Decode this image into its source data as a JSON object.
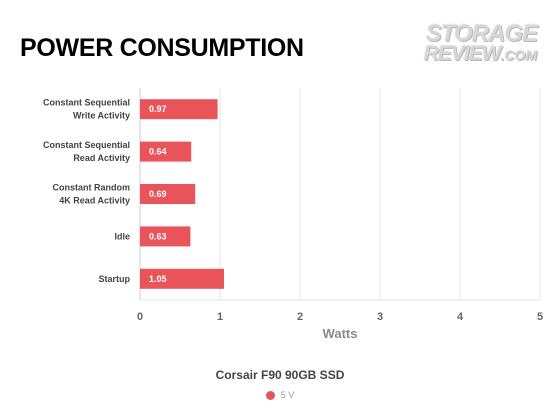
{
  "title": "POWER CONSUMPTION",
  "watermark": {
    "line1": "STORAGE",
    "line2": "REVIEW",
    "line2_suffix": ".COM"
  },
  "chart_data": {
    "type": "bar",
    "orientation": "horizontal",
    "title": "POWER CONSUMPTION",
    "subtitle": "Corsair F90 90GB SSD",
    "categories": [
      [
        "Constant Sequential",
        "Write Activity"
      ],
      [
        "Constant Sequential",
        "Read Activity"
      ],
      [
        "Constant Random",
        "4K Read Activity"
      ],
      [
        "Idle"
      ],
      [
        "Startup"
      ]
    ],
    "series": [
      {
        "name": "5 V",
        "values": [
          0.97,
          0.64,
          0.69,
          0.63,
          1.05
        ]
      }
    ],
    "xlabel": "Watts",
    "ylabel": "",
    "xlim": [
      0,
      5
    ],
    "xticks": [
      0,
      1,
      2,
      3,
      4,
      5
    ],
    "grid": true,
    "legend_position": "bottom-center",
    "colors": {
      "bar": "#e8545a",
      "grid": "#e3e3e3",
      "axis": "#cccccc"
    }
  }
}
